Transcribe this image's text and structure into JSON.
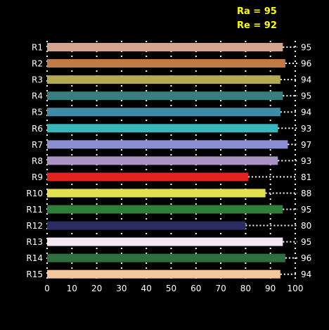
{
  "header": {
    "ra_text": "Ra = 95",
    "re_text": "Re = 92",
    "color": "#ffff00"
  },
  "chart_data": {
    "type": "bar",
    "orientation": "horizontal",
    "categories": [
      "R1",
      "R2",
      "R3",
      "R4",
      "R5",
      "R6",
      "R7",
      "R8",
      "R9",
      "R10",
      "R11",
      "R12",
      "R13",
      "R14",
      "R15"
    ],
    "values": [
      95,
      96,
      94,
      95,
      94,
      93,
      97,
      93,
      81,
      88,
      95,
      80,
      95,
      96,
      94
    ],
    "value_labels": [
      "95",
      "96",
      "94",
      "95",
      "94",
      "93",
      "97",
      "93",
      "81",
      "88",
      "95",
      "80",
      "95",
      "96",
      "94"
    ],
    "colors": [
      "#d4a48c",
      "#bf7a46",
      "#b4aa52",
      "#3a7d7e",
      "#3f8aa6",
      "#3ab6ba",
      "#8a8fd0",
      "#a992c4",
      "#e3231f",
      "#e2e04e",
      "#2f7f3a",
      "#2b2d62",
      "#f2e6f2",
      "#2f6e3e",
      "#f3c69e"
    ],
    "xlim": [
      0,
      100
    ],
    "xticks": [
      0,
      10,
      20,
      30,
      40,
      50,
      60,
      70,
      80,
      90,
      100
    ],
    "xtick_labels": [
      "0",
      "10",
      "20",
      "30",
      "40",
      "50",
      "60",
      "70",
      "80",
      "90",
      "100"
    ],
    "grid": true,
    "background": "#000000",
    "text_color": "#ffffff",
    "grid_color": "#ffffff"
  }
}
